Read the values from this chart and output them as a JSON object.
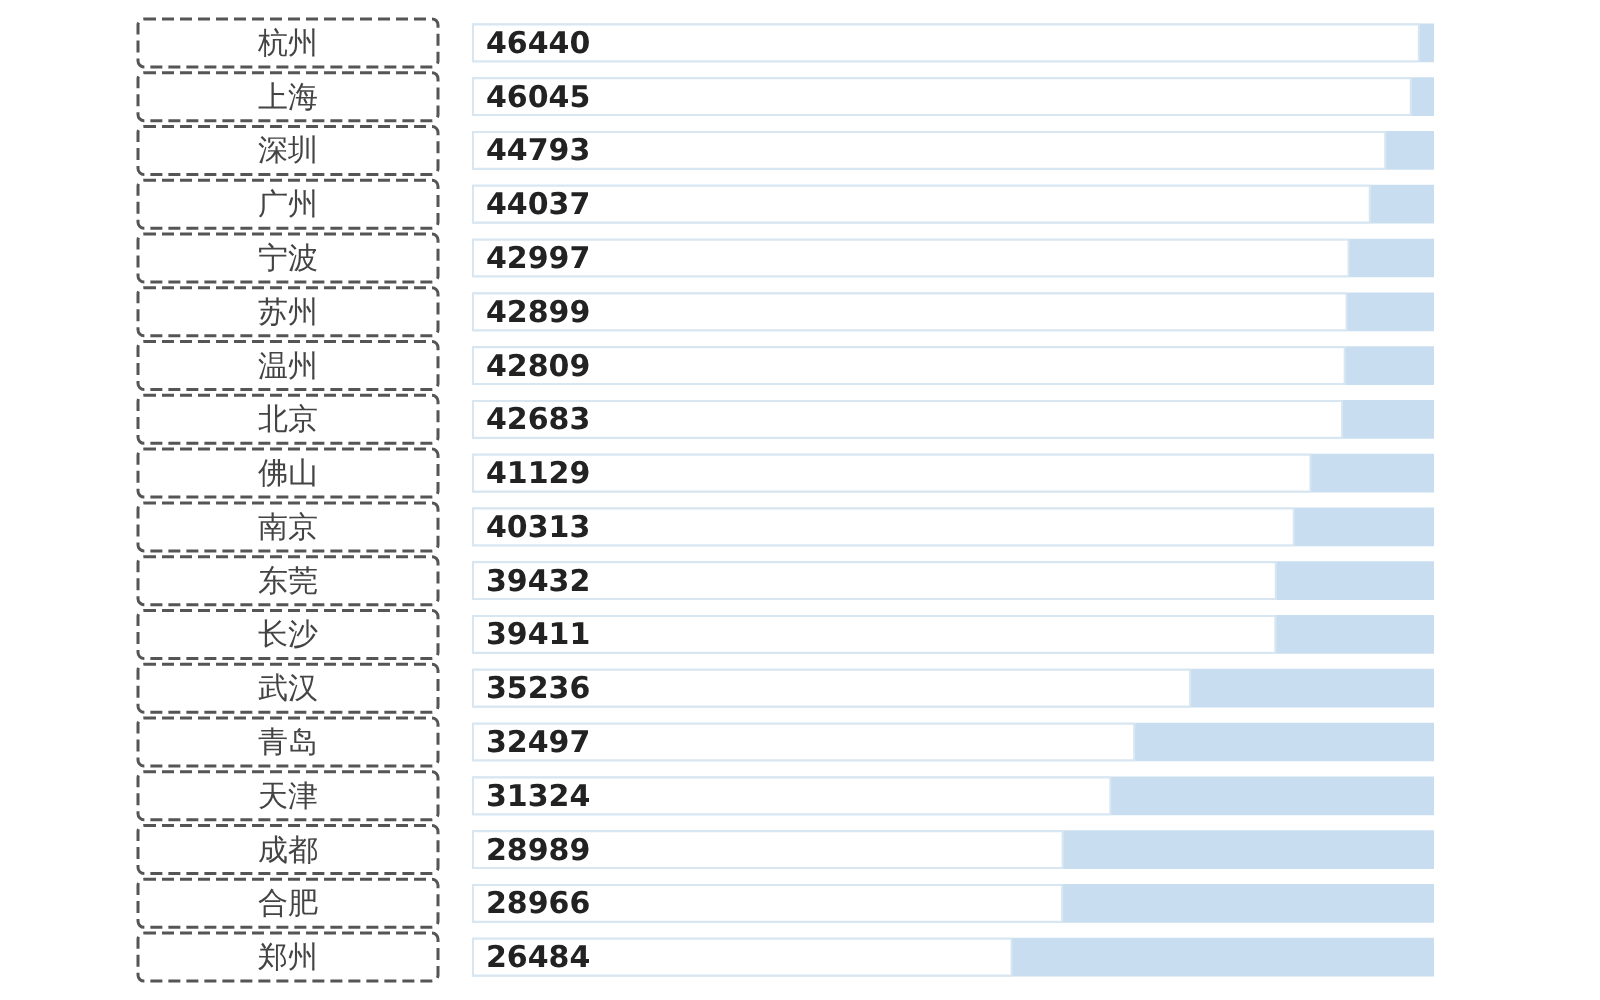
{
  "chart_data": {
    "type": "bar",
    "orientation": "horizontal",
    "categories": [
      "杭州",
      "上海",
      "深圳",
      "广州",
      "宁波",
      "苏州",
      "温州",
      "北京",
      "佛山",
      "南京",
      "东莞",
      "长沙",
      "武汉",
      "青岛",
      "天津",
      "成都",
      "合肥",
      "郑州"
    ],
    "values": [
      46440,
      46045,
      44793,
      44037,
      42997,
      42899,
      42809,
      42683,
      41129,
      40313,
      39432,
      39411,
      35236,
      32497,
      31324,
      28989,
      28966,
      26484
    ],
    "color": "#ffffff",
    "data_labels": true
  }
}
